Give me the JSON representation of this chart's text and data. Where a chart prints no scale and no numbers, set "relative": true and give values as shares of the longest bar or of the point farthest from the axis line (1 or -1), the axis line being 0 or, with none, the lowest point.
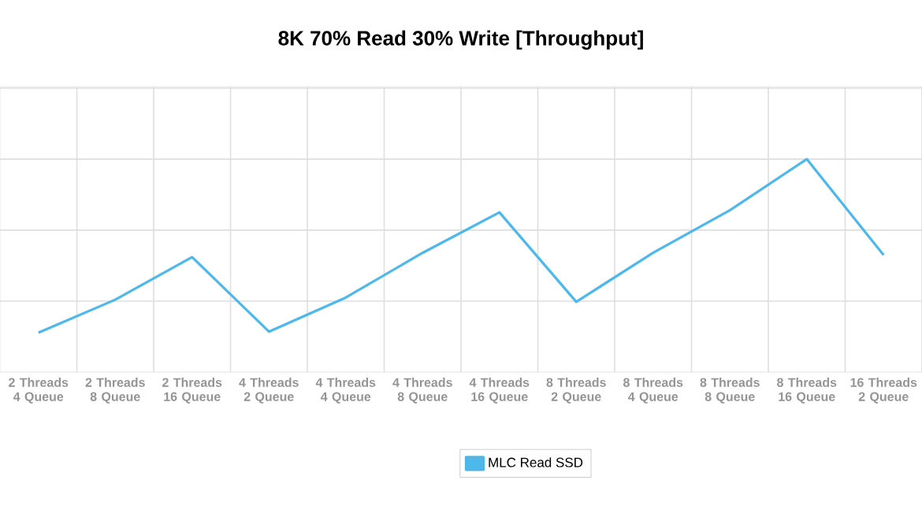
{
  "chart_data": {
    "type": "line",
    "title": "8K 70% Read 30% Write [Throughput]",
    "categories": [
      "2 Threads 4 Queue",
      "2 Threads 8 Queue",
      "2 Threads 16 Queue",
      "4 Threads 2 Queue",
      "4 Threads 4 Queue",
      "4 Threads 8 Queue",
      "4 Threads 16 Queue",
      "8 Threads 2 Queue",
      "8 Threads 4 Queue",
      "8 Threads 8 Queue",
      "8 Threads 16 Queue",
      "16 Threads 2 Queue"
    ],
    "series": [
      {
        "name": "MLC Read SSD",
        "color": "#4db8ec",
        "values": [
          0.185,
          0.34,
          0.54,
          0.19,
          0.35,
          0.56,
          0.75,
          0.33,
          0.56,
          0.76,
          1,
          0.55
        ]
      }
    ],
    "relative": true,
    "grid": true,
    "legend": "bottom"
  }
}
